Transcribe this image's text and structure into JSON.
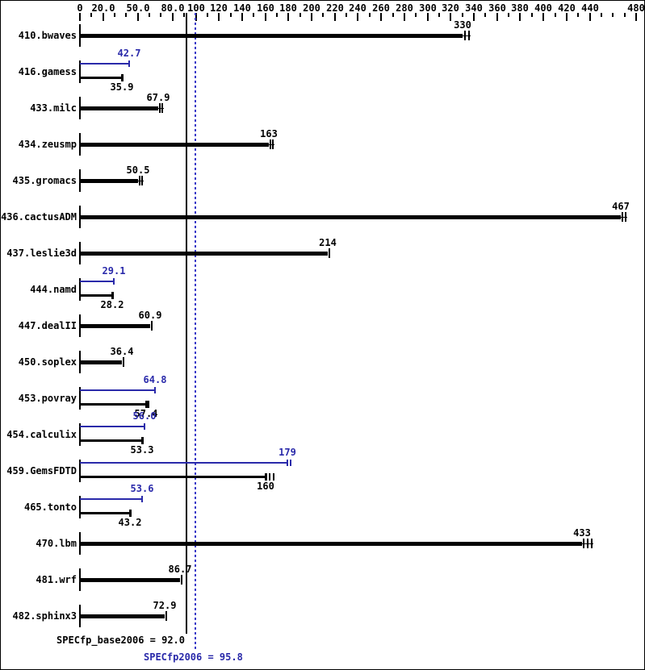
{
  "colors": {
    "base": "#000000",
    "peak": "#2a2aaa",
    "peak_line": "#3a3ac8",
    "background": "#ffffff",
    "border": "#000000"
  },
  "chart_data": {
    "type": "bar",
    "orientation": "horizontal",
    "axis": {
      "min": 0,
      "max": 480,
      "minor_step": 10,
      "labeled_values": [
        0,
        20,
        50,
        80,
        100,
        120,
        140,
        160,
        180,
        200,
        220,
        240,
        260,
        280,
        300,
        320,
        340,
        360,
        380,
        400,
        420,
        440,
        480
      ],
      "labels": [
        "0",
        "20.0",
        "50.0",
        "80.0",
        "100",
        "120",
        "140",
        "160",
        "180",
        "200",
        "220",
        "240",
        "260",
        "280",
        "300",
        "320",
        "340",
        "360",
        "380",
        "400",
        "420",
        "440",
        "480"
      ]
    },
    "reference_lines": [
      {
        "name": "base",
        "value": 92.0,
        "style": "solid",
        "color": "#000000"
      },
      {
        "name": "peak",
        "value": 95.8,
        "style": "dotted",
        "color": "#3a3ac8"
      }
    ],
    "benchmarks": [
      {
        "name": "410.bwaves",
        "single": true,
        "base": 330,
        "base_label": "330",
        "base_run_ticks": [
          2,
          7
        ]
      },
      {
        "name": "416.gamess",
        "single": false,
        "peak": 42.7,
        "peak_label": "42.7",
        "base": 35.9,
        "base_label": "35.9",
        "peak_run_ticks": [
          1
        ],
        "base_run_ticks": [
          1
        ]
      },
      {
        "name": "433.milc",
        "single": true,
        "base": 67.9,
        "base_label": "67.9",
        "base_run_ticks": [
          1,
          4
        ]
      },
      {
        "name": "434.zeusmp",
        "single": true,
        "base": 163,
        "base_label": "163",
        "base_run_ticks": [
          1,
          4
        ]
      },
      {
        "name": "435.gromacs",
        "single": true,
        "base": 50.5,
        "base_label": "50.5",
        "base_run_ticks": [
          1,
          4
        ]
      },
      {
        "name": "436.cactusADM",
        "single": true,
        "base": 467,
        "base_label": "467",
        "base_run_ticks": [
          1,
          5
        ]
      },
      {
        "name": "437.leslie3d",
        "single": true,
        "base": 214,
        "base_label": "214",
        "base_run_ticks": [
          1
        ]
      },
      {
        "name": "444.namd",
        "single": false,
        "peak": 29.1,
        "peak_label": "29.1",
        "base": 28.2,
        "base_label": "28.2",
        "peak_run_ticks": [
          1
        ],
        "base_run_ticks": [
          1
        ]
      },
      {
        "name": "447.dealII",
        "single": true,
        "base": 60.9,
        "base_label": "60.9",
        "base_run_ticks": [
          1
        ]
      },
      {
        "name": "450.soplex",
        "single": true,
        "base": 36.4,
        "base_label": "36.4",
        "base_run_ticks": [
          1
        ]
      },
      {
        "name": "453.povray",
        "single": false,
        "peak": 64.8,
        "peak_label": "64.8",
        "base": 57.4,
        "base_label": "57.4",
        "peak_run_ticks": [
          1
        ],
        "base_run_ticks": [
          1,
          4
        ]
      },
      {
        "name": "454.calculix",
        "single": false,
        "peak": 56.0,
        "peak_label": "56.0",
        "base": 53.3,
        "base_label": "53.3",
        "peak_run_ticks": [
          1
        ],
        "base_run_ticks": [
          1
        ]
      },
      {
        "name": "459.GemsFDTD",
        "single": false,
        "peak": 179,
        "peak_label": "179",
        "base": 160,
        "base_label": "160",
        "peak_run_ticks": [
          1,
          5
        ],
        "base_run_ticks": [
          1,
          6,
          11
        ]
      },
      {
        "name": "465.tonto",
        "single": false,
        "peak": 53.6,
        "peak_label": "53.6",
        "base": 43.2,
        "base_label": "43.2",
        "peak_run_ticks": [
          1
        ],
        "base_run_ticks": [
          1
        ]
      },
      {
        "name": "470.lbm",
        "single": true,
        "base": 433,
        "base_label": "433",
        "base_run_ticks": [
          1,
          6,
          11
        ]
      },
      {
        "name": "481.wrf",
        "single": true,
        "base": 86.7,
        "base_label": "86.7",
        "base_run_ticks": [
          1
        ]
      },
      {
        "name": "482.sphinx3",
        "single": true,
        "base": 72.9,
        "base_label": "72.9",
        "base_run_ticks": [
          1
        ]
      }
    ],
    "footer": {
      "base_text": "SPECfp_base2006 = 92.0",
      "peak_text": "SPECfp2006 = 95.8"
    }
  }
}
